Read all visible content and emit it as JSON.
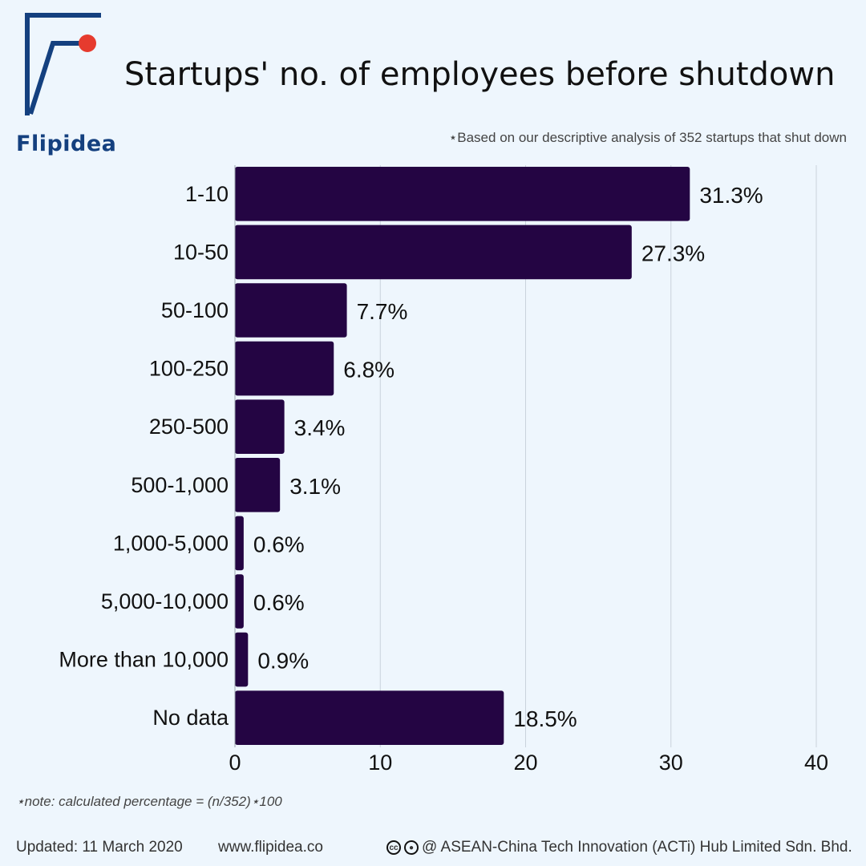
{
  "brand": {
    "name": "Flipidea",
    "accent": "#14407f",
    "dot_color": "#e63b2e"
  },
  "header": {
    "title": "Startups' no. of employees before shutdown",
    "subtitle": "⋆Based on our descriptive analysis of 352 startups that shut down"
  },
  "chart_data": {
    "type": "bar",
    "orientation": "horizontal",
    "title": "Startups' no. of employees before shutdown",
    "categories": [
      "1-10",
      "10-50",
      "50-100",
      "100-250",
      "250-500",
      "500-1,000",
      "1,000-5,000",
      "5,000-10,000",
      "More than 10,000",
      "No data"
    ],
    "values": [
      31.3,
      27.3,
      7.7,
      6.8,
      3.4,
      3.1,
      0.6,
      0.6,
      0.9,
      18.5
    ],
    "value_labels": [
      "31.3%",
      "27.3%",
      "7.7%",
      "6.8%",
      "3.4%",
      "3.1%",
      "0.6%",
      "0.6%",
      "0.9%",
      "18.5%"
    ],
    "xlim": [
      0,
      40
    ],
    "xticks": [
      0,
      10,
      20,
      30,
      40
    ],
    "grid": true,
    "bar_color": "#240543",
    "xlabel": "",
    "ylabel": ""
  },
  "note": "⋆note: calculated percentage = (n/352)⋆100",
  "footer": {
    "updated": "Updated: 11 March 2020",
    "website": "www.flipidea.co",
    "cc_icons": [
      "creative-commons-icon",
      "attribution-icon"
    ],
    "copyright": "@ ASEAN-China Tech Innovation (ACTi) Hub Limited Sdn. Bhd."
  }
}
